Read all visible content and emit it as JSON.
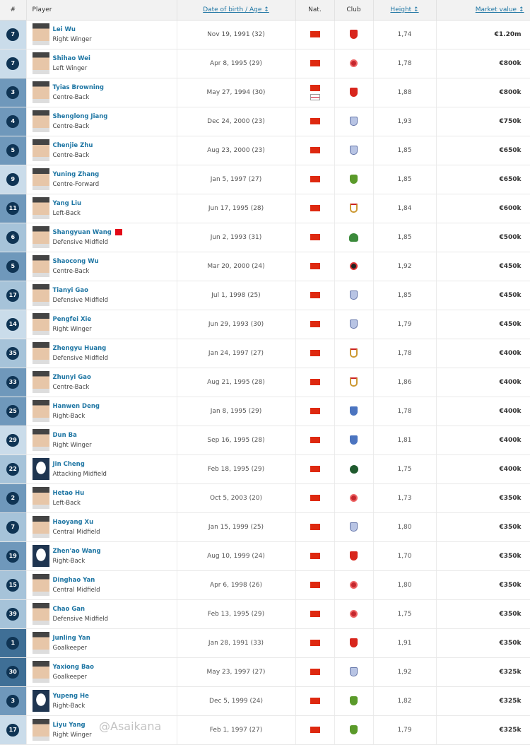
{
  "headers": {
    "num": "#",
    "player": "Player",
    "dob": "Date of birth / Age ↕",
    "nat": "Nat.",
    "club": "Club",
    "height": "Height ↕",
    "value": "Market value ↕"
  },
  "group_colors": {
    "Goalkeeper": "#3f6f96",
    "defence": "#6f98bb",
    "midfield": "#a6c3d9",
    "attack": "#cadcea"
  },
  "watermark": "@Asaikana",
  "players": [
    {
      "num": "7",
      "name": "Lei Wu",
      "pos": "Right Winger",
      "dob": "Nov 19, 1991 (32)",
      "nat": [
        "China"
      ],
      "club": "red-shield",
      "height": "1,74",
      "value": "€1.20m"
    },
    {
      "num": "7",
      "name": "Shihao Wei",
      "pos": "Left Winger",
      "dob": "Apr 8, 1995 (29)",
      "nat": [
        "China"
      ],
      "club": "red-circle",
      "height": "1,78",
      "value": "€800k"
    },
    {
      "num": "3",
      "name": "Tyias Browning",
      "pos": "Centre-Back",
      "dob": "May 27, 1994 (30)",
      "nat": [
        "China",
        "England"
      ],
      "club": "red-shield",
      "height": "1,88",
      "value": "€800k"
    },
    {
      "num": "4",
      "name": "Shenglong Jiang",
      "pos": "Centre-Back",
      "dob": "Dec 24, 2000 (23)",
      "nat": [
        "China"
      ],
      "club": "blue-crest",
      "height": "1,93",
      "value": "€750k"
    },
    {
      "num": "5",
      "name": "Chenjie Zhu",
      "pos": "Centre-Back",
      "dob": "Aug 23, 2000 (23)",
      "nat": [
        "China"
      ],
      "club": "blue-crest",
      "height": "1,85",
      "value": "€650k"
    },
    {
      "num": "9",
      "name": "Yuning Zhang",
      "pos": "Centre-Forward",
      "dob": "Jan 5, 1997 (27)",
      "nat": [
        "China"
      ],
      "club": "green-shield",
      "height": "1,85",
      "value": "€650k"
    },
    {
      "num": "11",
      "name": "Yang Liu",
      "pos": "Left-Back",
      "dob": "Jun 17, 1995 (28)",
      "nat": [
        "China"
      ],
      "club": "white-red-shield",
      "height": "1,84",
      "value": "€600k"
    },
    {
      "num": "6",
      "name": "Shangyuan Wang",
      "pos": "Defensive Midfield",
      "dob": "Jun 2, 1993 (31)",
      "nat": [
        "China"
      ],
      "club": "green-round",
      "height": "1,85",
      "value": "€500k",
      "extra_flag": "Turkey"
    },
    {
      "num": "5",
      "name": "Shaocong Wu",
      "pos": "Centre-Back",
      "dob": "Mar 20, 2000 (24)",
      "nat": [
        "China"
      ],
      "club": "black-red-circle",
      "height": "1,92",
      "value": "€450k"
    },
    {
      "num": "17",
      "name": "Tianyi Gao",
      "pos": "Defensive Midfield",
      "dob": "Jul 1, 1998 (25)",
      "nat": [
        "China"
      ],
      "club": "blue-crest",
      "height": "1,85",
      "value": "€450k"
    },
    {
      "num": "14",
      "name": "Pengfei Xie",
      "pos": "Right Winger",
      "dob": "Jun 29, 1993 (30)",
      "nat": [
        "China"
      ],
      "club": "blue-crest",
      "height": "1,79",
      "value": "€450k"
    },
    {
      "num": "35",
      "name": "Zhengyu Huang",
      "pos": "Defensive Midfield",
      "dob": "Jan 24, 1997 (27)",
      "nat": [
        "China"
      ],
      "club": "white-red-shield",
      "height": "1,78",
      "value": "€400k"
    },
    {
      "num": "33",
      "name": "Zhunyi Gao",
      "pos": "Centre-Back",
      "dob": "Aug 21, 1995 (28)",
      "nat": [
        "China"
      ],
      "club": "white-red-shield",
      "height": "1,86",
      "value": "€400k"
    },
    {
      "num": "25",
      "name": "Hanwen Deng",
      "pos": "Right-Back",
      "dob": "Jan 8, 1995 (29)",
      "nat": [
        "China"
      ],
      "club": "blue-shield",
      "height": "1,78",
      "value": "€400k"
    },
    {
      "num": "29",
      "name": "Dun Ba",
      "pos": "Right Winger",
      "dob": "Sep 16, 1995 (28)",
      "nat": [
        "China"
      ],
      "club": "blue-shield",
      "height": "1,81",
      "value": "€400k"
    },
    {
      "num": "22",
      "name": "Jin Cheng",
      "pos": "Attacking Midfield",
      "dob": "Feb 18, 1995 (29)",
      "nat": [
        "China"
      ],
      "club": "dark-green-circle",
      "height": "1,75",
      "value": "€400k",
      "blank_photo": true
    },
    {
      "num": "2",
      "name": "Hetao Hu",
      "pos": "Left-Back",
      "dob": "Oct 5, 2003 (20)",
      "nat": [
        "China"
      ],
      "club": "red-circle",
      "height": "1,73",
      "value": "€350k"
    },
    {
      "num": "7",
      "name": "Haoyang Xu",
      "pos": "Central Midfield",
      "dob": "Jan 15, 1999 (25)",
      "nat": [
        "China"
      ],
      "club": "blue-crest",
      "height": "1,80",
      "value": "€350k"
    },
    {
      "num": "19",
      "name": "Zhen'ao Wang",
      "pos": "Right-Back",
      "dob": "Aug 10, 1999 (24)",
      "nat": [
        "China"
      ],
      "club": "red-shield",
      "height": "1,70",
      "value": "€350k",
      "blank_photo": true
    },
    {
      "num": "15",
      "name": "Dinghao Yan",
      "pos": "Central Midfield",
      "dob": "Apr 6, 1998 (26)",
      "nat": [
        "China"
      ],
      "club": "red-circle",
      "height": "1,80",
      "value": "€350k"
    },
    {
      "num": "39",
      "name": "Chao Gan",
      "pos": "Defensive Midfield",
      "dob": "Feb 13, 1995 (29)",
      "nat": [
        "China"
      ],
      "club": "red-circle",
      "height": "1,75",
      "value": "€350k"
    },
    {
      "num": "1",
      "name": "Junling Yan",
      "pos": "Goalkeeper",
      "dob": "Jan 28, 1991 (33)",
      "nat": [
        "China"
      ],
      "club": "red-shield",
      "height": "1,91",
      "value": "€350k"
    },
    {
      "num": "30",
      "name": "Yaxiong Bao",
      "pos": "Goalkeeper",
      "dob": "May 23, 1997 (27)",
      "nat": [
        "China"
      ],
      "club": "blue-crest",
      "height": "1,92",
      "value": "€325k"
    },
    {
      "num": "3",
      "name": "Yupeng He",
      "pos": "Right-Back",
      "dob": "Dec 5, 1999 (24)",
      "nat": [
        "China"
      ],
      "club": "green-shield",
      "height": "1,82",
      "value": "€325k",
      "blank_photo": true
    },
    {
      "num": "17",
      "name": "Liyu Yang",
      "pos": "Right Winger",
      "dob": "Feb 1, 1997 (27)",
      "nat": [
        "China"
      ],
      "club": "green-shield",
      "height": "1,79",
      "value": "€325k"
    }
  ]
}
